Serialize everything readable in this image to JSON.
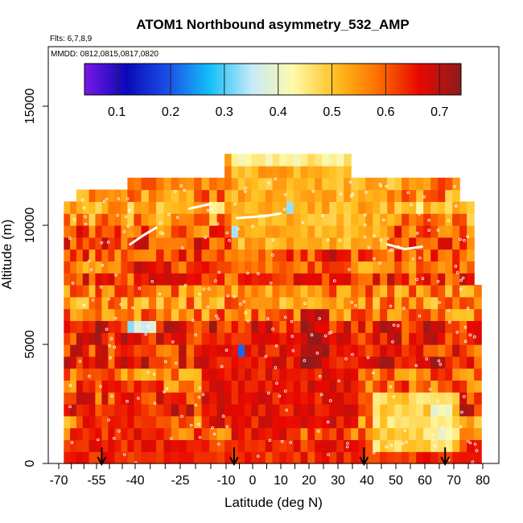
{
  "chart_data": {
    "type": "heatmap",
    "title": "ATOM1 Northbound asymmetry_532_AMP",
    "annotations": [
      "Flts: 6,7,8,9",
      "MMDD: 0812,0815,0817,0820"
    ],
    "xlabel": "Latitude (deg N)",
    "ylabel": "Altitude (m)",
    "xlim": [
      -70,
      80
    ],
    "ylim": [
      0,
      17500
    ],
    "x_ticks": [
      -70,
      -55,
      -40,
      -25,
      -10,
      0,
      10,
      20,
      30,
      40,
      50,
      60,
      70,
      80
    ],
    "x_tick_labels": [
      "-70",
      "-55",
      "-40",
      "-25",
      "-10",
      "0",
      "10",
      "20",
      "30",
      "40",
      "50",
      "60",
      "70",
      "80"
    ],
    "y_ticks": [
      0,
      5000,
      10000,
      15000
    ],
    "y_tick_labels": [
      "0",
      "5000",
      "10000",
      "15000"
    ],
    "colorbar": {
      "range": [
        0.04,
        0.74
      ],
      "ticks": [
        0.1,
        0.2,
        0.3,
        0.4,
        0.5,
        0.6,
        0.7
      ],
      "tick_labels": [
        "0.1",
        "0.2",
        "0.3",
        "0.4",
        "0.5",
        "0.6",
        "0.7"
      ],
      "placement": "top-inside",
      "colors": [
        "#7a18e8",
        "#0a0ab8",
        "#1a50e8",
        "#14c0f8",
        "#c8eaf8",
        "#fffaa8",
        "#ffc020",
        "#ff7000",
        "#e80800",
        "#8c1c1c"
      ]
    },
    "flight_arrows_lat": [
      -53,
      -7,
      39,
      67
    ],
    "value_bands": [
      {
        "alt": [
          0,
          1000
        ],
        "lat": [
          -68,
          80
        ],
        "value": 0.64
      },
      {
        "alt": [
          0,
          2500
        ],
        "lat": [
          -63,
          -30
        ],
        "value": 0.64
      },
      {
        "alt": [
          1500,
          5500
        ],
        "lat": [
          -20,
          35
        ],
        "value": 0.66
      },
      {
        "alt": [
          4000,
          6500
        ],
        "lat": [
          16,
          27
        ],
        "value": 0.7
      },
      {
        "alt": [
          500,
          3000
        ],
        "lat": [
          42,
          70
        ],
        "value": 0.48
      },
      {
        "alt": [
          1000,
          2500
        ],
        "lat": [
          60,
          68
        ],
        "value": 0.42
      },
      {
        "alt": [
          4500,
          5000
        ],
        "lat": [
          -7,
          -3
        ],
        "value": 0.2
      },
      {
        "alt": [
          5500,
          6000
        ],
        "lat": [
          -44,
          -34
        ],
        "value": 0.35
      },
      {
        "alt": [
          8500,
          9000
        ],
        "lat": [
          -10,
          10
        ],
        "value": 0.58
      },
      {
        "alt": [
          8500,
          9500
        ],
        "lat": [
          24,
          33
        ],
        "value": 0.69
      },
      {
        "alt": [
          7500,
          8500
        ],
        "lat": [
          -41,
          -30
        ],
        "value": 0.68
      },
      {
        "alt": [
          9000,
          12500
        ],
        "lat": [
          -10,
          47
        ],
        "value": 0.52
      },
      {
        "alt": [
          10500,
          11000
        ],
        "lat": [
          10,
          13
        ],
        "value": 0.3
      },
      {
        "alt": [
          12500,
          13000
        ],
        "lat": [
          -10,
          35
        ],
        "value": 0.45
      },
      {
        "alt": [
          9500,
          10000
        ],
        "lat": [
          -10,
          -6
        ],
        "value": 0.35
      }
    ]
  }
}
